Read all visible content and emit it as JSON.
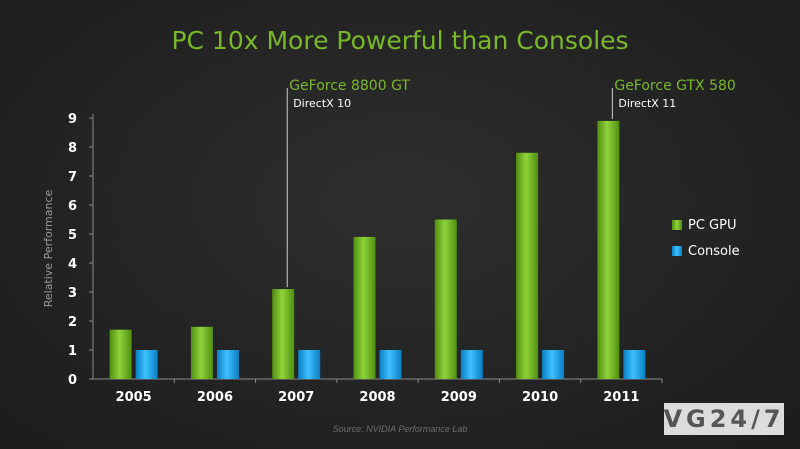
{
  "title": "PC 10x More Powerful than Consoles",
  "source": "Source:  NVIDIA Performance Lab",
  "watermark": "VG24/7",
  "colors": {
    "pc_gpu": "#6cb31d",
    "console": "#1b9ee0",
    "title": "#79b928",
    "annotation": "#79b928"
  },
  "chart_data": {
    "type": "bar",
    "title": "PC 10x More Powerful than Consoles",
    "xlabel": "",
    "ylabel": "Relative Performance",
    "ylim": [
      0,
      9
    ],
    "yticks": [
      "0",
      "1",
      "2",
      "3",
      "4",
      "5",
      "6",
      "7",
      "8",
      "9"
    ],
    "grid": false,
    "legend_position": "right",
    "categories": [
      "2005",
      "2006",
      "2007",
      "2008",
      "2009",
      "2010",
      "2011"
    ],
    "series": [
      {
        "name": "PC GPU",
        "color": "#6cb31d",
        "values": [
          1.7,
          1.8,
          3.1,
          4.9,
          5.5,
          7.8,
          8.9
        ]
      },
      {
        "name": "Console",
        "color": "#1b9ee0",
        "values": [
          1,
          1,
          1,
          1,
          1,
          1,
          1
        ]
      }
    ],
    "annotations": [
      {
        "category": "2007",
        "series": "PC GPU",
        "label": "GeForce 8800 GT",
        "sublabel": "DirectX 10"
      },
      {
        "category": "2011",
        "series": "PC GPU",
        "label": "GeForce GTX 580",
        "sublabel": "DirectX 11"
      }
    ]
  }
}
